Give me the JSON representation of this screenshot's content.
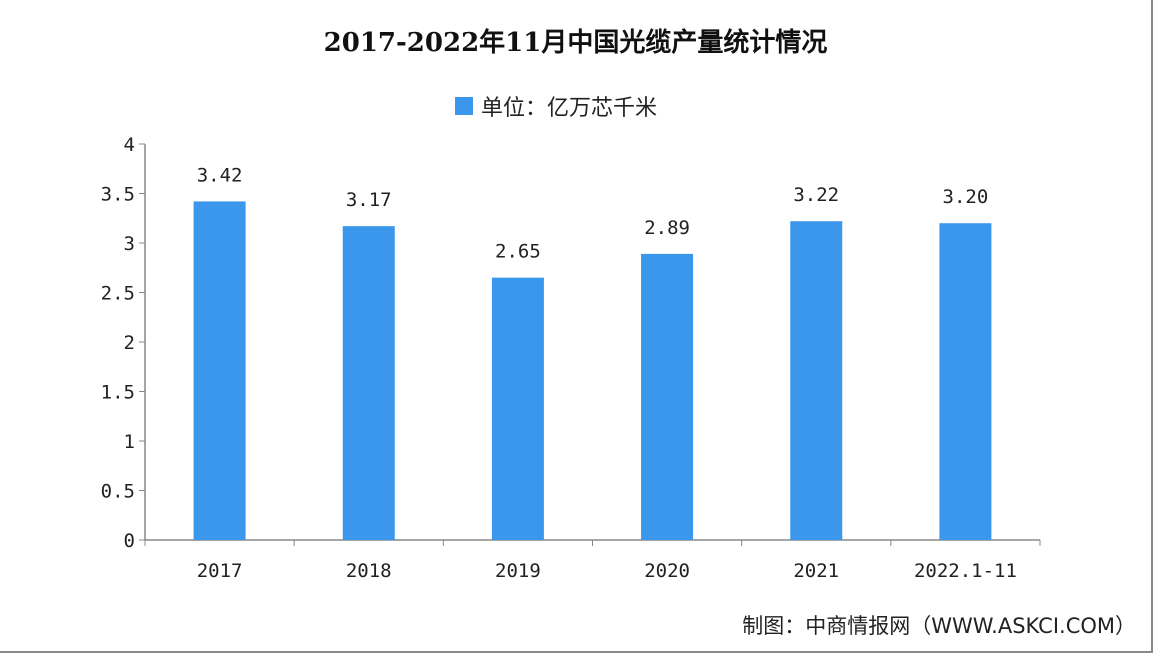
{
  "chart_data": {
    "type": "bar",
    "title": "2017-2022年11月中国光缆产量统计情况",
    "legend": "单位：亿万芯千米",
    "legend_placement": "top",
    "categories": [
      "2017",
      "2018",
      "2019",
      "2020",
      "2021",
      "2022.1-11"
    ],
    "values": [
      3.42,
      3.17,
      2.65,
      2.89,
      3.22,
      3.2
    ],
    "value_labels": [
      "3.42",
      "3.17",
      "2.65",
      "2.89",
      "3.22",
      "3.20"
    ],
    "ylim": [
      0,
      4
    ],
    "yticks": [
      "0",
      "0.5",
      "1",
      "1.5",
      "2",
      "2.5",
      "3",
      "3.5",
      "4"
    ],
    "grid": false,
    "bar_color": "#3b97eb"
  },
  "source": "制图：中商情报网（WWW.ASKCI.COM）"
}
